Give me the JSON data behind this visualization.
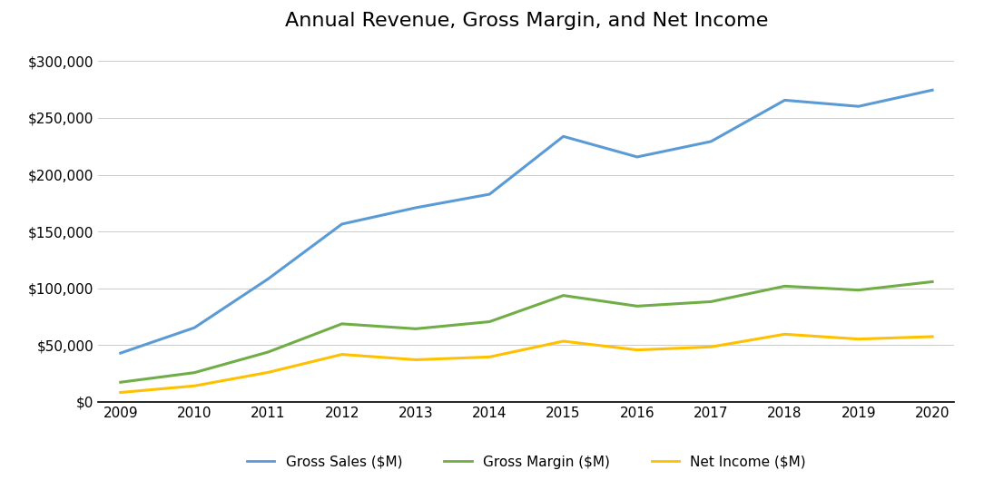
{
  "title": "Annual Revenue, Gross Margin, and Net Income",
  "years": [
    2009,
    2010,
    2011,
    2012,
    2013,
    2014,
    2015,
    2016,
    2017,
    2018,
    2019,
    2020
  ],
  "gross_sales": [
    42905,
    65225,
    108249,
    156508,
    170910,
    182795,
    233715,
    215639,
    229234,
    265595,
    260174,
    274515
  ],
  "gross_margin": [
    17222,
    25684,
    43818,
    68662,
    64304,
    70537,
    93626,
    84263,
    88186,
    101839,
    98392,
    105752
  ],
  "net_income": [
    8235,
    14013,
    25922,
    41733,
    37037,
    39510,
    53394,
    45687,
    48351,
    59531,
    55256,
    57411
  ],
  "sales_color": "#5B9BD5",
  "margin_color": "#70AD47",
  "income_color": "#FFC000",
  "background_color": "#FFFFFF",
  "legend_labels": [
    "Gross Sales ($M)",
    "Gross Margin ($M)",
    "Net Income ($M)"
  ],
  "ylim": [
    0,
    315000
  ],
  "yticks": [
    0,
    50000,
    100000,
    150000,
    200000,
    250000,
    300000
  ],
  "line_width": 2.2,
  "title_fontsize": 16,
  "tick_fontsize": 11,
  "legend_fontsize": 11
}
